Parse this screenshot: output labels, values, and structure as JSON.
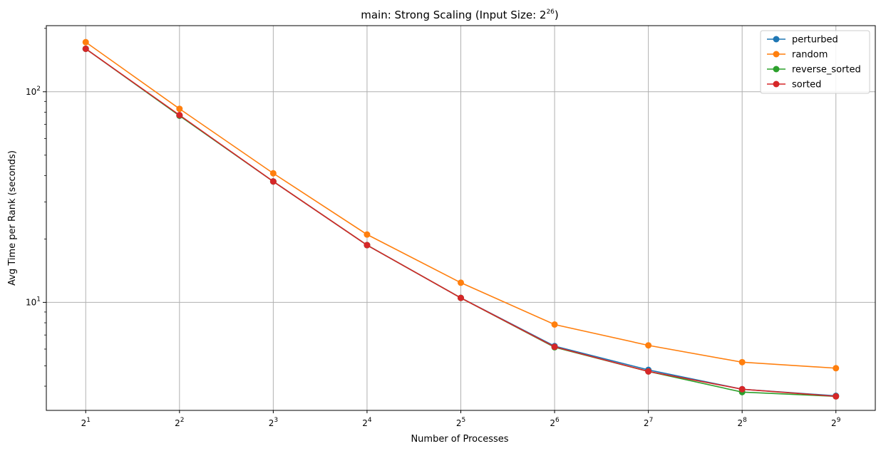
{
  "chart_data": {
    "type": "line",
    "title": {
      "prefix": "main: Strong Scaling (Input Size: ",
      "base": "2",
      "exp": "26",
      "suffix": ")"
    },
    "xlabel": "Number of Processes",
    "ylabel": "Avg Time per Rank (seconds)",
    "x_scale": "log2",
    "y_scale": "log10",
    "x": [
      2,
      4,
      8,
      16,
      32,
      64,
      128,
      256,
      512
    ],
    "x_tick_labels": [
      {
        "base": "2",
        "exp": "1"
      },
      {
        "base": "2",
        "exp": "2"
      },
      {
        "base": "2",
        "exp": "3"
      },
      {
        "base": "2",
        "exp": "4"
      },
      {
        "base": "2",
        "exp": "5"
      },
      {
        "base": "2",
        "exp": "6"
      },
      {
        "base": "2",
        "exp": "7"
      },
      {
        "base": "2",
        "exp": "8"
      },
      {
        "base": "2",
        "exp": "9"
      }
    ],
    "y_ticks": [
      {
        "value": 10,
        "base": "10",
        "exp": "1"
      },
      {
        "value": 100,
        "base": "10",
        "exp": "2"
      }
    ],
    "ylim": [
      3.07,
      206
    ],
    "xlim_exp": [
      0.58,
      9.42
    ],
    "grid": true,
    "legend_position": "top-right",
    "series": [
      {
        "name": "perturbed",
        "color": "#1f77b4",
        "values": [
          160,
          77,
          37.5,
          18.7,
          10.5,
          6.2,
          4.78,
          3.87,
          3.6
        ]
      },
      {
        "name": "random",
        "color": "#ff7f0e",
        "values": [
          172,
          83,
          41,
          21,
          12.4,
          7.85,
          6.25,
          5.2,
          4.87
        ]
      },
      {
        "name": "reverse_sorted",
        "color": "#2ca02c",
        "values": [
          160,
          77,
          37.5,
          18.7,
          10.5,
          6.12,
          4.7,
          3.75,
          3.58
        ]
      },
      {
        "name": "sorted",
        "color": "#d62728",
        "values": [
          160,
          77.5,
          37.5,
          18.7,
          10.5,
          6.15,
          4.7,
          3.87,
          3.58
        ]
      }
    ]
  }
}
